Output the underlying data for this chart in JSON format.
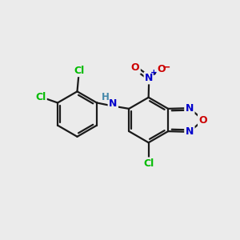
{
  "bg_color": "#ebebeb",
  "atom_colors": {
    "Cl": "#00bb00",
    "N": "#0000cc",
    "O": "#cc0000",
    "NH": "#4488aa",
    "H": "#4488aa",
    "C": "#000000"
  },
  "bond_width": 1.6,
  "dbo": 0.07,
  "figsize": [
    3.0,
    3.0
  ],
  "dpi": 100
}
